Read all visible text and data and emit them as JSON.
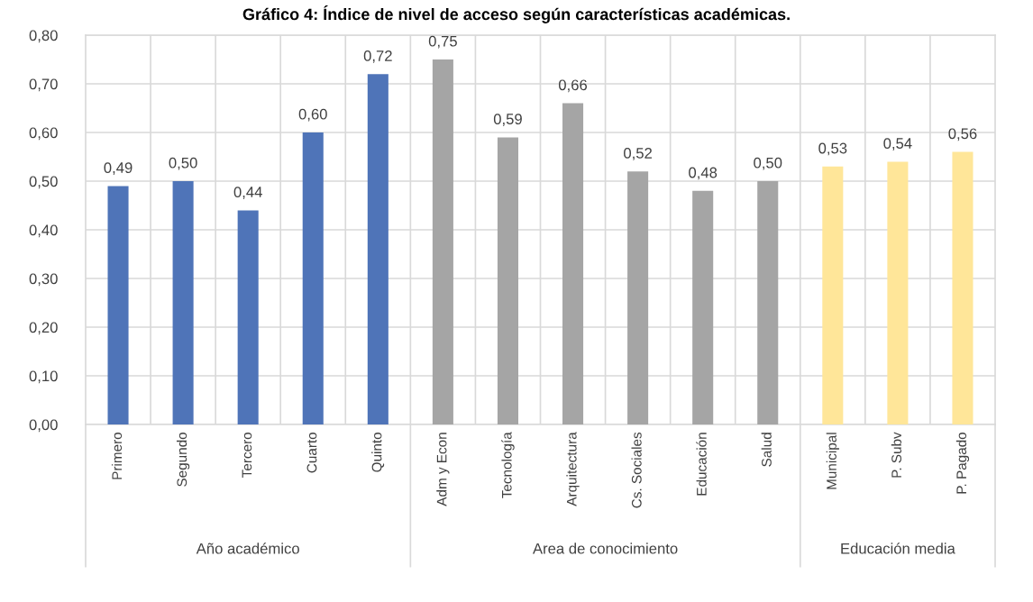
{
  "chart_data": {
    "type": "bar",
    "title": "Gráfico 4: Índice de nivel de acceso según características académicas.",
    "categories": [
      "Primero",
      "Segundo",
      "Tercero",
      "Cuarto",
      "Quinto",
      "Adm y Econ",
      "Tecnología",
      "Arquitectura",
      "Cs. Sociales",
      "Educación",
      "Salud",
      "Municipal",
      "P. Subv",
      "P. Pagado"
    ],
    "values": [
      0.49,
      0.5,
      0.44,
      0.6,
      0.72,
      0.75,
      0.59,
      0.66,
      0.52,
      0.48,
      0.5,
      0.53,
      0.54,
      0.56
    ],
    "value_labels": [
      "0,49",
      "0,50",
      "0,44",
      "0,60",
      "0,72",
      "0,75",
      "0,59",
      "0,66",
      "0,52",
      "0,48",
      "0,50",
      "0,53",
      "0,54",
      "0,56"
    ],
    "colors": [
      "#4f74b8",
      "#4f74b8",
      "#4f74b8",
      "#4f74b8",
      "#4f74b8",
      "#a5a5a5",
      "#a5a5a5",
      "#a5a5a5",
      "#a5a5a5",
      "#a5a5a5",
      "#a5a5a5",
      "#ffe699",
      "#ffe699",
      "#ffe699"
    ],
    "annotations": [
      "Año académico",
      "Area de conocimiento",
      "Educación media"
    ],
    "ylim": [
      0,
      0.8
    ],
    "yticks": [
      {
        "value": 0,
        "label": "0,00"
      },
      {
        "value": 0.1,
        "label": "0,10"
      },
      {
        "value": 0.2,
        "label": "0,20"
      },
      {
        "value": 0.3,
        "label": "0,30"
      },
      {
        "value": 0.4,
        "label": "0,40"
      },
      {
        "value": 0.5,
        "label": "0,50"
      },
      {
        "value": 0.6,
        "label": "0,60"
      },
      {
        "value": 0.7,
        "label": "0,70"
      },
      {
        "value": 0.8,
        "label": "0,80"
      }
    ],
    "grid": true
  }
}
